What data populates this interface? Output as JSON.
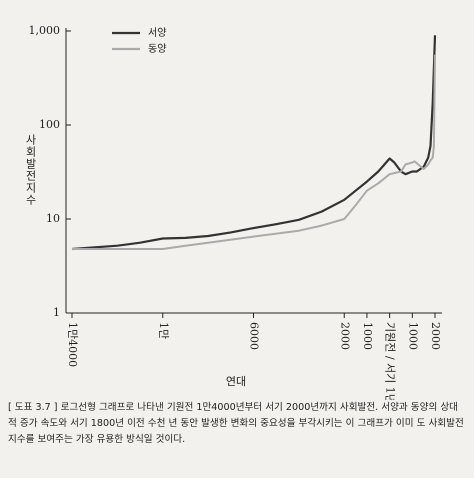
{
  "chart_data": {
    "type": "line",
    "log_y": true,
    "y_label": "사회발전지수",
    "x_label": "연대",
    "xlim": [
      -14000,
      2000
    ],
    "ylim": [
      1,
      1000
    ],
    "yticks": [
      1,
      10,
      100,
      {
        "value": 1000,
        "label": "1,000"
      }
    ],
    "xticks": [
      {
        "value": -14000,
        "label": "1만4000"
      },
      {
        "value": -10000,
        "label": "1만"
      },
      {
        "value": -6000,
        "label": "6000"
      },
      {
        "value": -2000,
        "label": "2000"
      },
      {
        "value": -1000,
        "label": "1000"
      },
      {
        "value": 1,
        "label": "기원전 / 서기 1년"
      },
      1000,
      2000
    ],
    "legend": "upper left",
    "series": [
      {
        "name": "서양",
        "color": "#333333",
        "x": [
          -14000,
          -12000,
          -11000,
          -10000,
          -9000,
          -8000,
          -7000,
          -6000,
          -5000,
          -4000,
          -3000,
          -2000,
          -1500,
          -1000,
          -500,
          1,
          200,
          500,
          700,
          1000,
          1200,
          1500,
          1700,
          1800,
          1900,
          2000
        ],
        "values": [
          4.8,
          5.2,
          5.6,
          6.2,
          6.3,
          6.6,
          7.2,
          8,
          8.8,
          9.8,
          12,
          16,
          20,
          25,
          32,
          44,
          40,
          32,
          30,
          32,
          32,
          36,
          45,
          60,
          170,
          900
        ]
      },
      {
        "name": "동양",
        "color": "#aaaaaa",
        "x": [
          -14000,
          -10000,
          -9000,
          -8000,
          -6000,
          -4000,
          -3000,
          -2000,
          -1500,
          -1000,
          -500,
          1,
          500,
          700,
          1000,
          1100,
          1500,
          1700,
          1800,
          1900,
          1950,
          2000
        ],
        "values": [
          4.8,
          4.8,
          5.2,
          5.6,
          6.5,
          7.5,
          8.5,
          10,
          14,
          20,
          24,
          30,
          32,
          38,
          40,
          41,
          34,
          38,
          42,
          45,
          60,
          560
        ]
      }
    ]
  },
  "caption": "[ 도표 3.7 ] 로그선형 그래프로 나타낸 기원전 1만4000년부터 서기 2000년까지 사회발전. 서양과 동양의 상대적 증가 속도와 서기 1800년 이전 수천 년 동안 발생한 변화의 중요성을 부각시키는 이 그래프가 이미 도 사회발전지수를 보여주는 가장 유용한 방식일 것이다."
}
